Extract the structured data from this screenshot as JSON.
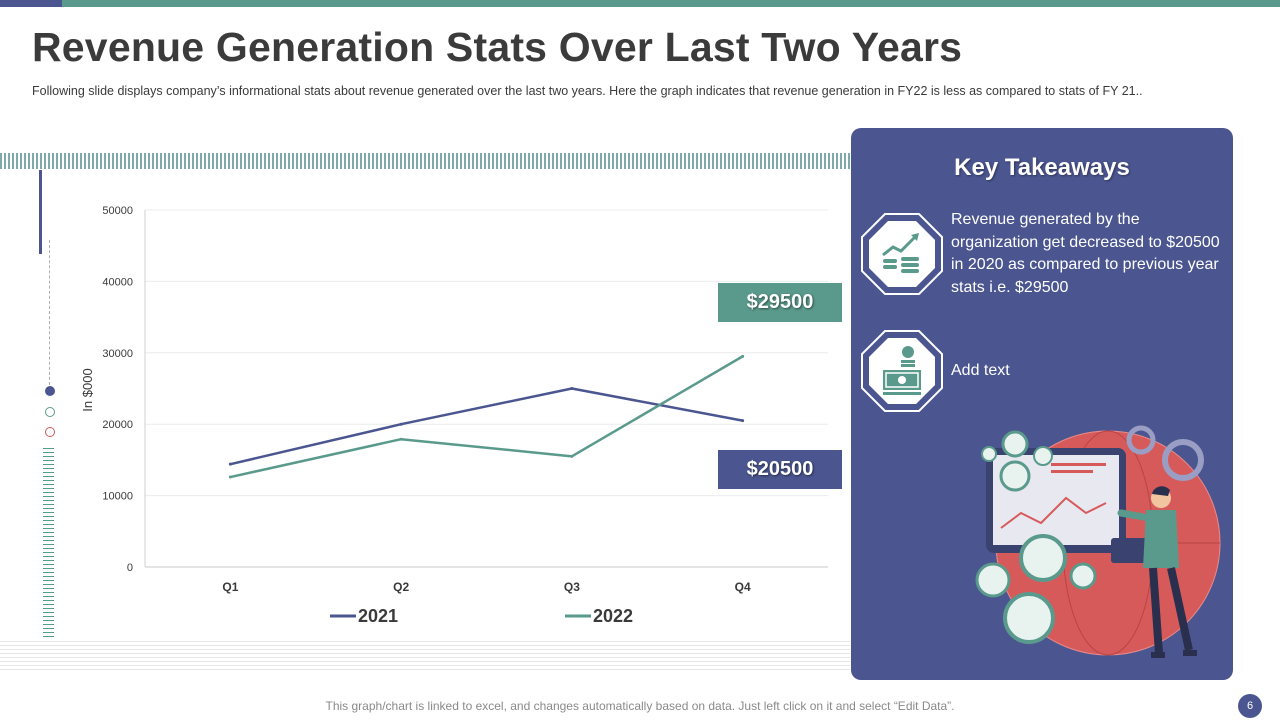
{
  "slide": {
    "title": "Revenue Generation Stats Over Last Two Years",
    "subtitle": "Following slide displays company’s informational stats about revenue generated over the last two years. Here the graph indicates that revenue generation in FY22 is less as compared to stats of FY 21..",
    "footer": "This graph/chart is linked to excel, and changes automatically based on data. Just left click on it and select “Edit Data”.",
    "page_number": "6"
  },
  "callouts": {
    "high": "$29500",
    "low": "$20500"
  },
  "panel": {
    "title": "Key Takeaways",
    "items": [
      {
        "text": "Revenue generated by the organization get decreased to $20500 in 2020 as compared to previous year stats i.e. $29500",
        "icon": "money-growth-icon"
      },
      {
        "text": "Add text",
        "icon": "cash-icon"
      }
    ]
  },
  "colors": {
    "series_2021": "#4b5690",
    "series_2022": "#5a9a8c",
    "accent_red": "#d25a5a"
  },
  "chart_data": {
    "type": "line",
    "categories": [
      "Q1",
      "Q2",
      "Q3",
      "Q4"
    ],
    "series": [
      {
        "name": "2021",
        "values": [
          14400,
          20000,
          25000,
          20500
        ],
        "color": "#4b5690"
      },
      {
        "name": "2022",
        "values": [
          12600,
          17900,
          15500,
          29500
        ],
        "color": "#5a9a8c"
      }
    ],
    "ylabel": "In $000",
    "ylim": [
      0,
      50000
    ],
    "yticks": [
      "0",
      "10000",
      "20000",
      "30000",
      "40000",
      "50000"
    ],
    "grid": true,
    "legend": "bottom"
  }
}
